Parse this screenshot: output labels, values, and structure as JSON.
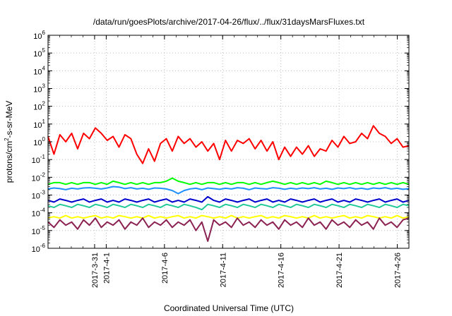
{
  "chart_data": {
    "type": "line",
    "title": "/data/run/goesPlots/archive/2017-04-26/flux/../flux/31daysMarsFluxes.txt",
    "xlabel": "Coordinated Universal Time (UTC)",
    "ylabel": {
      "prefix": "protons/cm",
      "sup": "2",
      "suffix": "-s-sr-MeV"
    },
    "y_scale": "log",
    "ylim_exponents": [
      -6,
      6
    ],
    "y_tick_labels": [
      {
        "base": "10",
        "exp": "6"
      },
      {
        "base": "10",
        "exp": "5"
      },
      {
        "base": "10",
        "exp": "4"
      },
      {
        "base": "10",
        "exp": "3"
      },
      {
        "base": "10",
        "exp": "2"
      },
      {
        "base": "10",
        "exp": "1"
      },
      {
        "base": "10",
        "exp": "0"
      },
      {
        "base": "10",
        "exp": "-1"
      },
      {
        "base": "10",
        "exp": "-2"
      },
      {
        "base": "10",
        "exp": "-3"
      },
      {
        "base": "10",
        "exp": "-4"
      },
      {
        "base": "10",
        "exp": "-5"
      },
      {
        "base": "10",
        "exp": "-6"
      }
    ],
    "xlim": [
      "2017-03-27",
      "2017-04-27"
    ],
    "x_tick_labels": [
      "2017-3-31",
      "2017-4-1",
      "2017-4-6",
      "2017-4-11",
      "2017-4-16",
      "2017-4-21",
      "2017-4-26"
    ],
    "grid": true,
    "series": [
      {
        "color": "#ff0000",
        "values": [
          2.0,
          0.2,
          2.5,
          1.0,
          3.0,
          0.4,
          3.0,
          1.5,
          6.0,
          3.0,
          1.2,
          2.0,
          0.5,
          2.5,
          1.5,
          0.2,
          0.06,
          0.4,
          0.08,
          0.8,
          1.5,
          0.3,
          2.0,
          0.8,
          1.5,
          0.5,
          1.0,
          0.3,
          0.8,
          0.1,
          1.2,
          0.3,
          1.2,
          0.8,
          1.5,
          0.4,
          1.2,
          0.3,
          1.0,
          0.1,
          0.5,
          0.15,
          0.5,
          0.2,
          0.6,
          0.15,
          0.4,
          0.3,
          1.2,
          0.5,
          2.0,
          0.8,
          1.0,
          3.0,
          1.5,
          8.0,
          3.0,
          2.0,
          0.8,
          1.5,
          0.5,
          0.6
        ]
      },
      {
        "color": "#00ff00",
        "values": [
          0.004,
          0.005,
          0.005,
          0.004,
          0.005,
          0.004,
          0.005,
          0.005,
          0.004,
          0.005,
          0.004,
          0.006,
          0.005,
          0.004,
          0.005,
          0.004,
          0.005,
          0.004,
          0.005,
          0.005,
          0.006,
          0.009,
          0.006,
          0.005,
          0.004,
          0.005,
          0.004,
          0.005,
          0.005,
          0.004,
          0.005,
          0.004,
          0.005,
          0.005,
          0.004,
          0.005,
          0.004,
          0.005,
          0.006,
          0.005,
          0.004,
          0.005,
          0.004,
          0.005,
          0.004,
          0.005,
          0.004,
          0.006,
          0.005,
          0.004,
          0.005,
          0.004,
          0.005,
          0.004,
          0.005,
          0.004,
          0.005,
          0.004,
          0.005,
          0.004,
          0.005,
          0.004
        ]
      },
      {
        "color": "#1e90ff",
        "values": [
          0.0022,
          0.0025,
          0.0023,
          0.002,
          0.0024,
          0.0022,
          0.0025,
          0.0026,
          0.0024,
          0.0022,
          0.0025,
          0.003,
          0.0028,
          0.0023,
          0.0026,
          0.0022,
          0.0024,
          0.0021,
          0.0025,
          0.0024,
          0.0022,
          0.0018,
          0.0012,
          0.0018,
          0.0022,
          0.0024,
          0.002,
          0.0025,
          0.0023,
          0.0021,
          0.0024,
          0.0022,
          0.0026,
          0.0024,
          0.002,
          0.0025,
          0.0023,
          0.0022,
          0.0026,
          0.0024,
          0.0021,
          0.0024,
          0.0022,
          0.0025,
          0.0023,
          0.0026,
          0.0022,
          0.0024,
          0.0021,
          0.0025,
          0.0023,
          0.0026,
          0.0022,
          0.0024,
          0.0021,
          0.0025,
          0.0023,
          0.0026,
          0.0022,
          0.0024,
          0.0021,
          0.0023
        ]
      },
      {
        "color": "#0000cd",
        "values": [
          0.0005,
          0.0004,
          0.0006,
          0.0005,
          0.0004,
          0.0005,
          0.0006,
          0.0004,
          0.0005,
          0.0006,
          0.0004,
          0.0005,
          0.0004,
          0.0006,
          0.0005,
          0.0004,
          0.0005,
          0.0006,
          0.0004,
          0.0005,
          0.0006,
          0.0004,
          0.0005,
          0.0004,
          0.0006,
          0.0005,
          0.0004,
          0.0008,
          0.0005,
          0.0004,
          0.0006,
          0.0005,
          0.0004,
          0.0005,
          0.0006,
          0.0004,
          0.0005,
          0.0006,
          0.0004,
          0.0005,
          0.0004,
          0.0006,
          0.0005,
          0.0004,
          0.0005,
          0.0006,
          0.0004,
          0.0005,
          0.0006,
          0.0004,
          0.0005,
          0.0004,
          0.0006,
          0.0005,
          0.0004,
          0.0005,
          0.0006,
          0.0004,
          0.0005,
          0.0006,
          0.0004,
          0.0005
        ]
      },
      {
        "color": "#20c997",
        "values": [
          0.00025,
          0.0002,
          0.0003,
          0.00025,
          0.0002,
          0.0003,
          0.00025,
          0.0002,
          0.0003,
          0.00025,
          0.0002,
          0.0003,
          0.00025,
          0.0002,
          0.0003,
          0.00025,
          0.0002,
          0.0003,
          0.00025,
          0.0002,
          0.0003,
          0.00025,
          0.0002,
          0.0003,
          0.00025,
          0.0002,
          0.00015,
          0.0003,
          0.00025,
          0.0002,
          0.0003,
          0.00025,
          0.0002,
          0.0003,
          0.00025,
          0.0002,
          0.0003,
          0.00025,
          0.0002,
          0.0003,
          0.00025,
          0.0002,
          0.0003,
          0.00025,
          0.0002,
          0.0003,
          0.00025,
          0.0002,
          0.0003,
          0.00025,
          0.0002,
          0.0003,
          0.00025,
          0.0002,
          0.0003,
          0.00025,
          0.0002,
          0.0003,
          0.00025,
          0.0002,
          0.0003,
          0.00025
        ]
      },
      {
        "color": "#ffff00",
        "values": [
          5e-05,
          6e-05,
          5e-05,
          7e-05,
          5e-05,
          6e-05,
          5e-05,
          6e-05,
          7e-05,
          5e-05,
          6e-05,
          5e-05,
          7e-05,
          6e-05,
          5e-05,
          6e-05,
          5e-05,
          7e-05,
          5e-05,
          6e-05,
          5e-05,
          6e-05,
          7e-05,
          5e-05,
          6e-05,
          5e-05,
          7e-05,
          6e-05,
          5e-05,
          6e-05,
          5e-05,
          7e-05,
          5e-05,
          6e-05,
          5e-05,
          6e-05,
          7e-05,
          5e-05,
          6e-05,
          5e-05,
          7e-05,
          6e-05,
          5e-05,
          6e-05,
          5e-05,
          7e-05,
          5e-05,
          6e-05,
          5e-05,
          6e-05,
          7e-05,
          5e-05,
          6e-05,
          5e-05,
          7e-05,
          6e-05,
          5e-05,
          6e-05,
          5e-05,
          7e-05,
          5e-05,
          6e-05
        ]
      },
      {
        "color": "#8b2252",
        "values": [
          3e-05,
          1.5e-05,
          4e-05,
          2e-05,
          3e-05,
          1.2e-05,
          4e-05,
          2e-05,
          5e-05,
          1.5e-05,
          3e-05,
          2e-05,
          4e-05,
          1.2e-05,
          3e-05,
          2e-05,
          5e-05,
          1.5e-05,
          3e-05,
          2e-05,
          4e-05,
          1.5e-05,
          3e-05,
          2e-05,
          4e-05,
          1e-05,
          3e-05,
          2.5e-06,
          4e-05,
          2e-05,
          3e-05,
          1.5e-05,
          5e-05,
          2e-05,
          3e-05,
          1.5e-05,
          4e-05,
          2e-05,
          3e-05,
          1.2e-05,
          4e-05,
          2e-05,
          3e-05,
          1.5e-05,
          5e-05,
          2e-05,
          3e-05,
          1.2e-05,
          4e-05,
          2e-05,
          3e-05,
          1.5e-05,
          4e-05,
          2e-05,
          3e-05,
          1.2e-05,
          5e-05,
          2e-05,
          3e-05,
          1.5e-05,
          4e-05,
          5e-05
        ]
      }
    ]
  }
}
